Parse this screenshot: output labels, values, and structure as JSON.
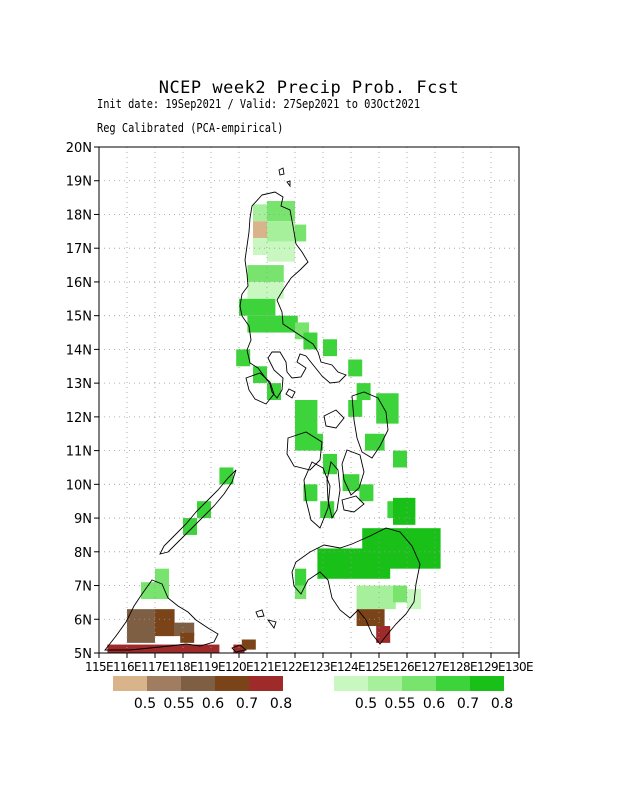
{
  "header": {
    "title": "NCEP week2 Precip Prob. Fcst",
    "init_line": "Init date: 19Sep2021 / Valid: 27Sep2021 to 03Oct2021",
    "method_line": "Reg Calibrated (PCA-empirical)"
  },
  "map": {
    "lon_range": [
      115,
      130
    ],
    "lat_range": [
      5,
      20
    ],
    "lat_labels": [
      "5N",
      "6N",
      "7N",
      "8N",
      "9N",
      "10N",
      "11N",
      "12N",
      "13N",
      "14N",
      "15N",
      "16N",
      "17N",
      "18N",
      "19N",
      "20N"
    ],
    "lon_labels": [
      "115E",
      "116E",
      "117E",
      "118E",
      "119E",
      "120E",
      "121E",
      "122E",
      "123E",
      "124E",
      "125E",
      "126E",
      "127E",
      "128E",
      "129E",
      "130E"
    ],
    "grid": true
  },
  "legend": {
    "below": {
      "colors": [
        "#d9b48a",
        "#a07c60",
        "#7f5f44",
        "#7a4418",
        "#9e2a2a"
      ],
      "labels": [
        "0.5",
        "0.55",
        "0.6",
        "0.7",
        "0.8"
      ]
    },
    "above": {
      "colors": [
        "#c8f8c0",
        "#a6f09c",
        "#78e46e",
        "#3cd43a",
        "#18c018"
      ],
      "labels": [
        "0.5",
        "0.55",
        "0.6",
        "0.7",
        "0.8"
      ]
    }
  }
}
